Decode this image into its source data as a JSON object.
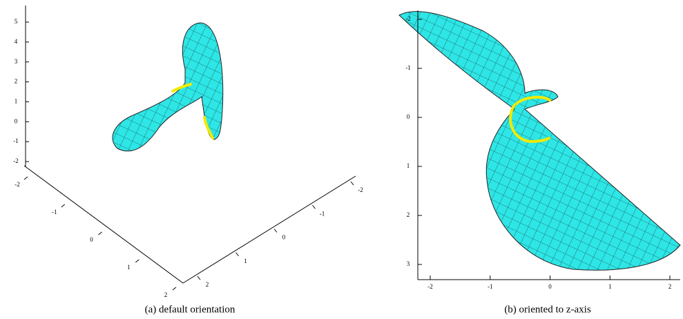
{
  "panels": [
    {
      "caption": "(a)  default orientation",
      "axes": [
        {
          "ticks": [
            "5",
            "4",
            "3",
            "2",
            "1",
            "0",
            "-1",
            "-2"
          ]
        },
        {
          "ticks": [
            "-2",
            "-1",
            "0",
            "1",
            "2"
          ]
        },
        {
          "ticks": [
            "2",
            "1",
            "0",
            "-1",
            "-2"
          ]
        }
      ]
    },
    {
      "caption": "(b)  oriented to z-axis",
      "axes": [
        {
          "ticks": [
            "-2",
            "-1",
            "0",
            "1",
            "2",
            "3"
          ]
        },
        {
          "ticks": [
            "-2",
            "-1",
            "0",
            "1",
            "2"
          ]
        }
      ]
    }
  ]
}
